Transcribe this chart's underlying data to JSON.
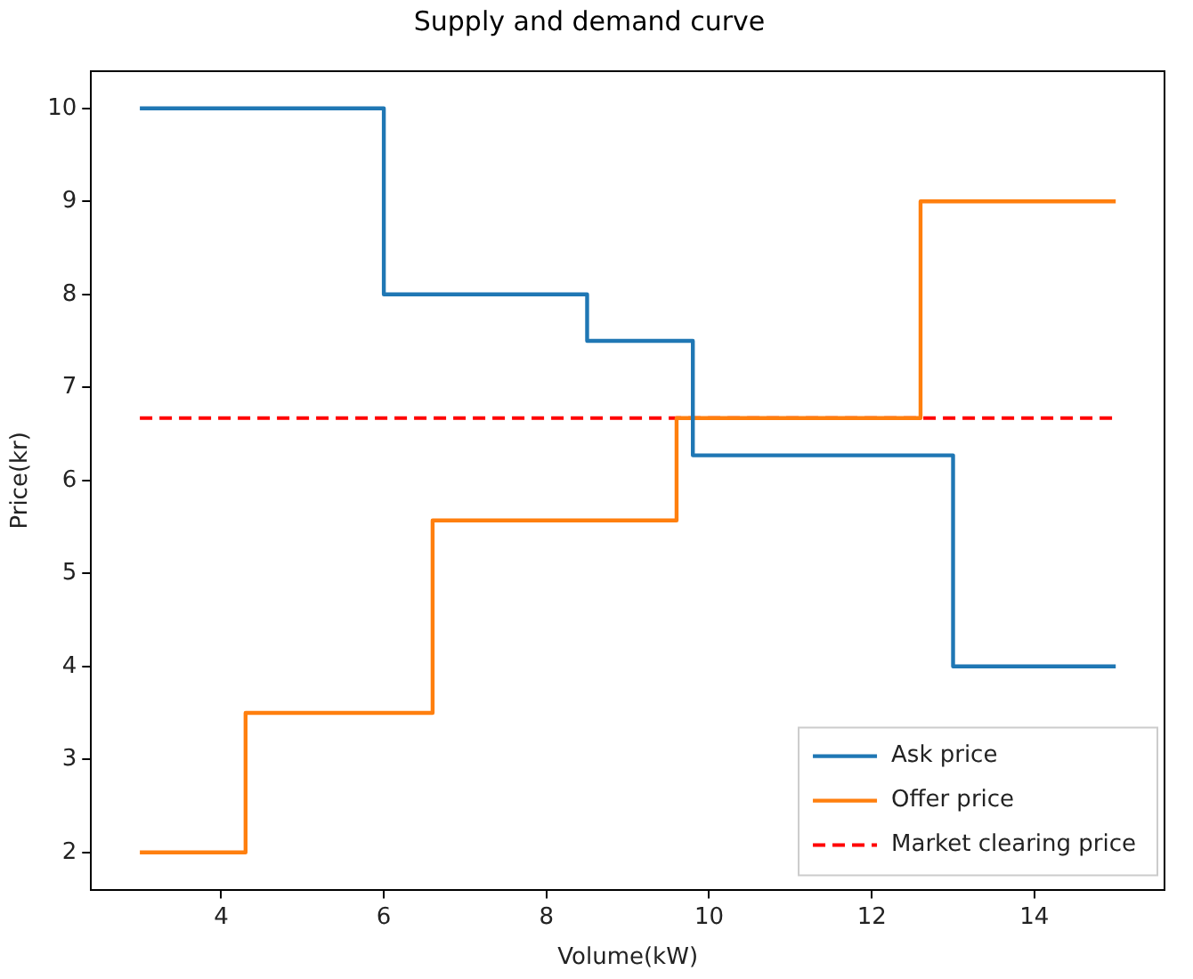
{
  "chart_data": {
    "type": "step",
    "title": "Supply and demand curve",
    "xlabel": "Volume(kW)",
    "ylabel": "Price(kr)",
    "series": [
      {
        "name": "Ask price",
        "color": "#1f77b4",
        "x": [
          3,
          6,
          8.5,
          9.8,
          13,
          15
        ],
        "values": [
          10,
          8,
          7.5,
          6.27,
          4,
          4
        ]
      },
      {
        "name": "Offer price",
        "color": "#ff7f0e",
        "x": [
          3,
          4.3,
          6.6,
          9.6,
          12.6,
          15
        ],
        "values": [
          2,
          3.5,
          5.57,
          6.67,
          9,
          9
        ]
      }
    ],
    "ref_lines": [
      {
        "axis": "y",
        "value": 6.67,
        "label": "Market clearing price",
        "color": "#ff0000",
        "line_style": "dashed"
      }
    ],
    "xlim": [
      2.4,
      15.6
    ],
    "xticks": [
      4,
      6,
      8,
      10,
      12,
      14
    ],
    "ylim": [
      1.6,
      10.4
    ],
    "yticks": [
      2,
      3,
      4,
      5,
      6,
      7,
      8,
      9,
      10
    ],
    "grid": false,
    "legend": "bottom right"
  }
}
